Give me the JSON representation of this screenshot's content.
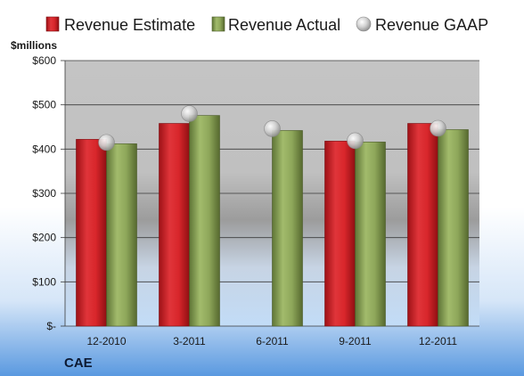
{
  "chart_data": {
    "type": "bar",
    "unit_label": "$millions",
    "company": "CAE",
    "categories": [
      "12-2010",
      "3-2011",
      "6-2011",
      "9-2011",
      "12-2011"
    ],
    "series": [
      {
        "name": "Revenue Estimate",
        "kind": "bar",
        "color": "#d7262b",
        "values": [
          422,
          458,
          null,
          418,
          458
        ]
      },
      {
        "name": "Revenue Actual",
        "kind": "bar",
        "color": "#8ea75a",
        "values": [
          412,
          476,
          442,
          416,
          444
        ]
      },
      {
        "name": "Revenue GAAP",
        "kind": "marker",
        "color": "#c8c8c8",
        "values": [
          415,
          480,
          446,
          419,
          447
        ]
      }
    ],
    "y_ticks": [
      {
        "value": 0,
        "label": "$-"
      },
      {
        "value": 100,
        "label": "$100"
      },
      {
        "value": 200,
        "label": "$200"
      },
      {
        "value": 300,
        "label": "$300"
      },
      {
        "value": 400,
        "label": "$400"
      },
      {
        "value": 500,
        "label": "$500"
      },
      {
        "value": 600,
        "label": "$600"
      }
    ],
    "ylim": [
      0,
      600
    ],
    "grid": true,
    "legend_position": "top"
  }
}
